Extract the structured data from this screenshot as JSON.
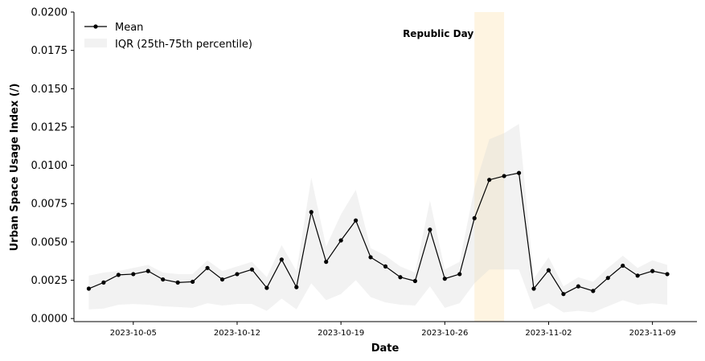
{
  "chart_data": {
    "type": "line",
    "xlabel": "Date",
    "ylabel": "Urban Space Usage Index (/)",
    "ylim": [
      -0.0002,
      0.02
    ],
    "xlim": [
      "2023-10-01",
      "2023-11-12"
    ],
    "grid": false,
    "legend_placement": "top-left",
    "x": [
      "2023-10-02",
      "2023-10-03",
      "2023-10-04",
      "2023-10-05",
      "2023-10-06",
      "2023-10-07",
      "2023-10-08",
      "2023-10-09",
      "2023-10-10",
      "2023-10-11",
      "2023-10-12",
      "2023-10-13",
      "2023-10-14",
      "2023-10-15",
      "2023-10-16",
      "2023-10-17",
      "2023-10-18",
      "2023-10-19",
      "2023-10-20",
      "2023-10-21",
      "2023-10-22",
      "2023-10-23",
      "2023-10-24",
      "2023-10-25",
      "2023-10-26",
      "2023-10-27",
      "2023-10-28",
      "2023-10-29",
      "2023-10-30",
      "2023-10-31",
      "2023-11-01",
      "2023-11-02",
      "2023-11-03",
      "2023-11-04",
      "2023-11-05",
      "2023-11-06",
      "2023-11-07",
      "2023-11-08",
      "2023-11-09",
      "2023-11-10"
    ],
    "series": [
      {
        "name": "Mean",
        "color": "#000000",
        "values": [
          0.00195,
          0.00235,
          0.00285,
          0.0029,
          0.0031,
          0.00255,
          0.00235,
          0.0024,
          0.0033,
          0.00255,
          0.0029,
          0.0032,
          0.002,
          0.00385,
          0.00205,
          0.00695,
          0.0037,
          0.0051,
          0.0064,
          0.004,
          0.0034,
          0.0027,
          0.00245,
          0.0058,
          0.0026,
          0.0029,
          0.00655,
          0.00905,
          0.0093,
          0.0095,
          0.00195,
          0.00315,
          0.0016,
          0.0021,
          0.0018,
          0.00265,
          0.00345,
          0.0028,
          0.0031,
          0.0029
        ]
      },
      {
        "name": "IQR (25th-75th percentile)",
        "type": "band",
        "color": "#d9d9d9",
        "lower": [
          0.0006,
          0.00065,
          0.0009,
          0.00095,
          0.0009,
          0.0008,
          0.00075,
          0.0007,
          0.001,
          0.00085,
          0.00095,
          0.00095,
          0.0005,
          0.0013,
          0.0006,
          0.0023,
          0.0012,
          0.0016,
          0.0025,
          0.0014,
          0.00105,
          0.0009,
          0.00085,
          0.0021,
          0.0007,
          0.001,
          0.0023,
          0.0032,
          0.0032,
          0.0032,
          0.0006,
          0.001,
          0.0004,
          0.0005,
          0.0004,
          0.0008,
          0.0012,
          0.0009,
          0.001,
          0.0009
        ],
        "upper": [
          0.0028,
          0.003,
          0.0031,
          0.0033,
          0.0035,
          0.003,
          0.0029,
          0.0029,
          0.0038,
          0.0031,
          0.0034,
          0.0037,
          0.0027,
          0.0048,
          0.0031,
          0.0092,
          0.0047,
          0.0068,
          0.0084,
          0.0046,
          0.0041,
          0.0034,
          0.003,
          0.0077,
          0.0032,
          0.0037,
          0.0085,
          0.0117,
          0.0121,
          0.0127,
          0.0026,
          0.004,
          0.0021,
          0.0027,
          0.0024,
          0.0033,
          0.0041,
          0.0033,
          0.0038,
          0.0035
        ]
      }
    ],
    "yticks": [
      "0.0000",
      "0.0025",
      "0.0050",
      "0.0075",
      "0.0100",
      "0.0125",
      "0.0150",
      "0.0175",
      "0.0200"
    ],
    "xticks": [
      "2023-10-05",
      "2023-10-12",
      "2023-10-19",
      "2023-10-26",
      "2023-11-02",
      "2023-11-09"
    ],
    "annotations": [
      {
        "label": "Republic Day",
        "x_start": "2023-10-28",
        "x_end": "2023-10-30",
        "color": "#f5a800",
        "shade_color": "#fdebc8"
      }
    ]
  }
}
